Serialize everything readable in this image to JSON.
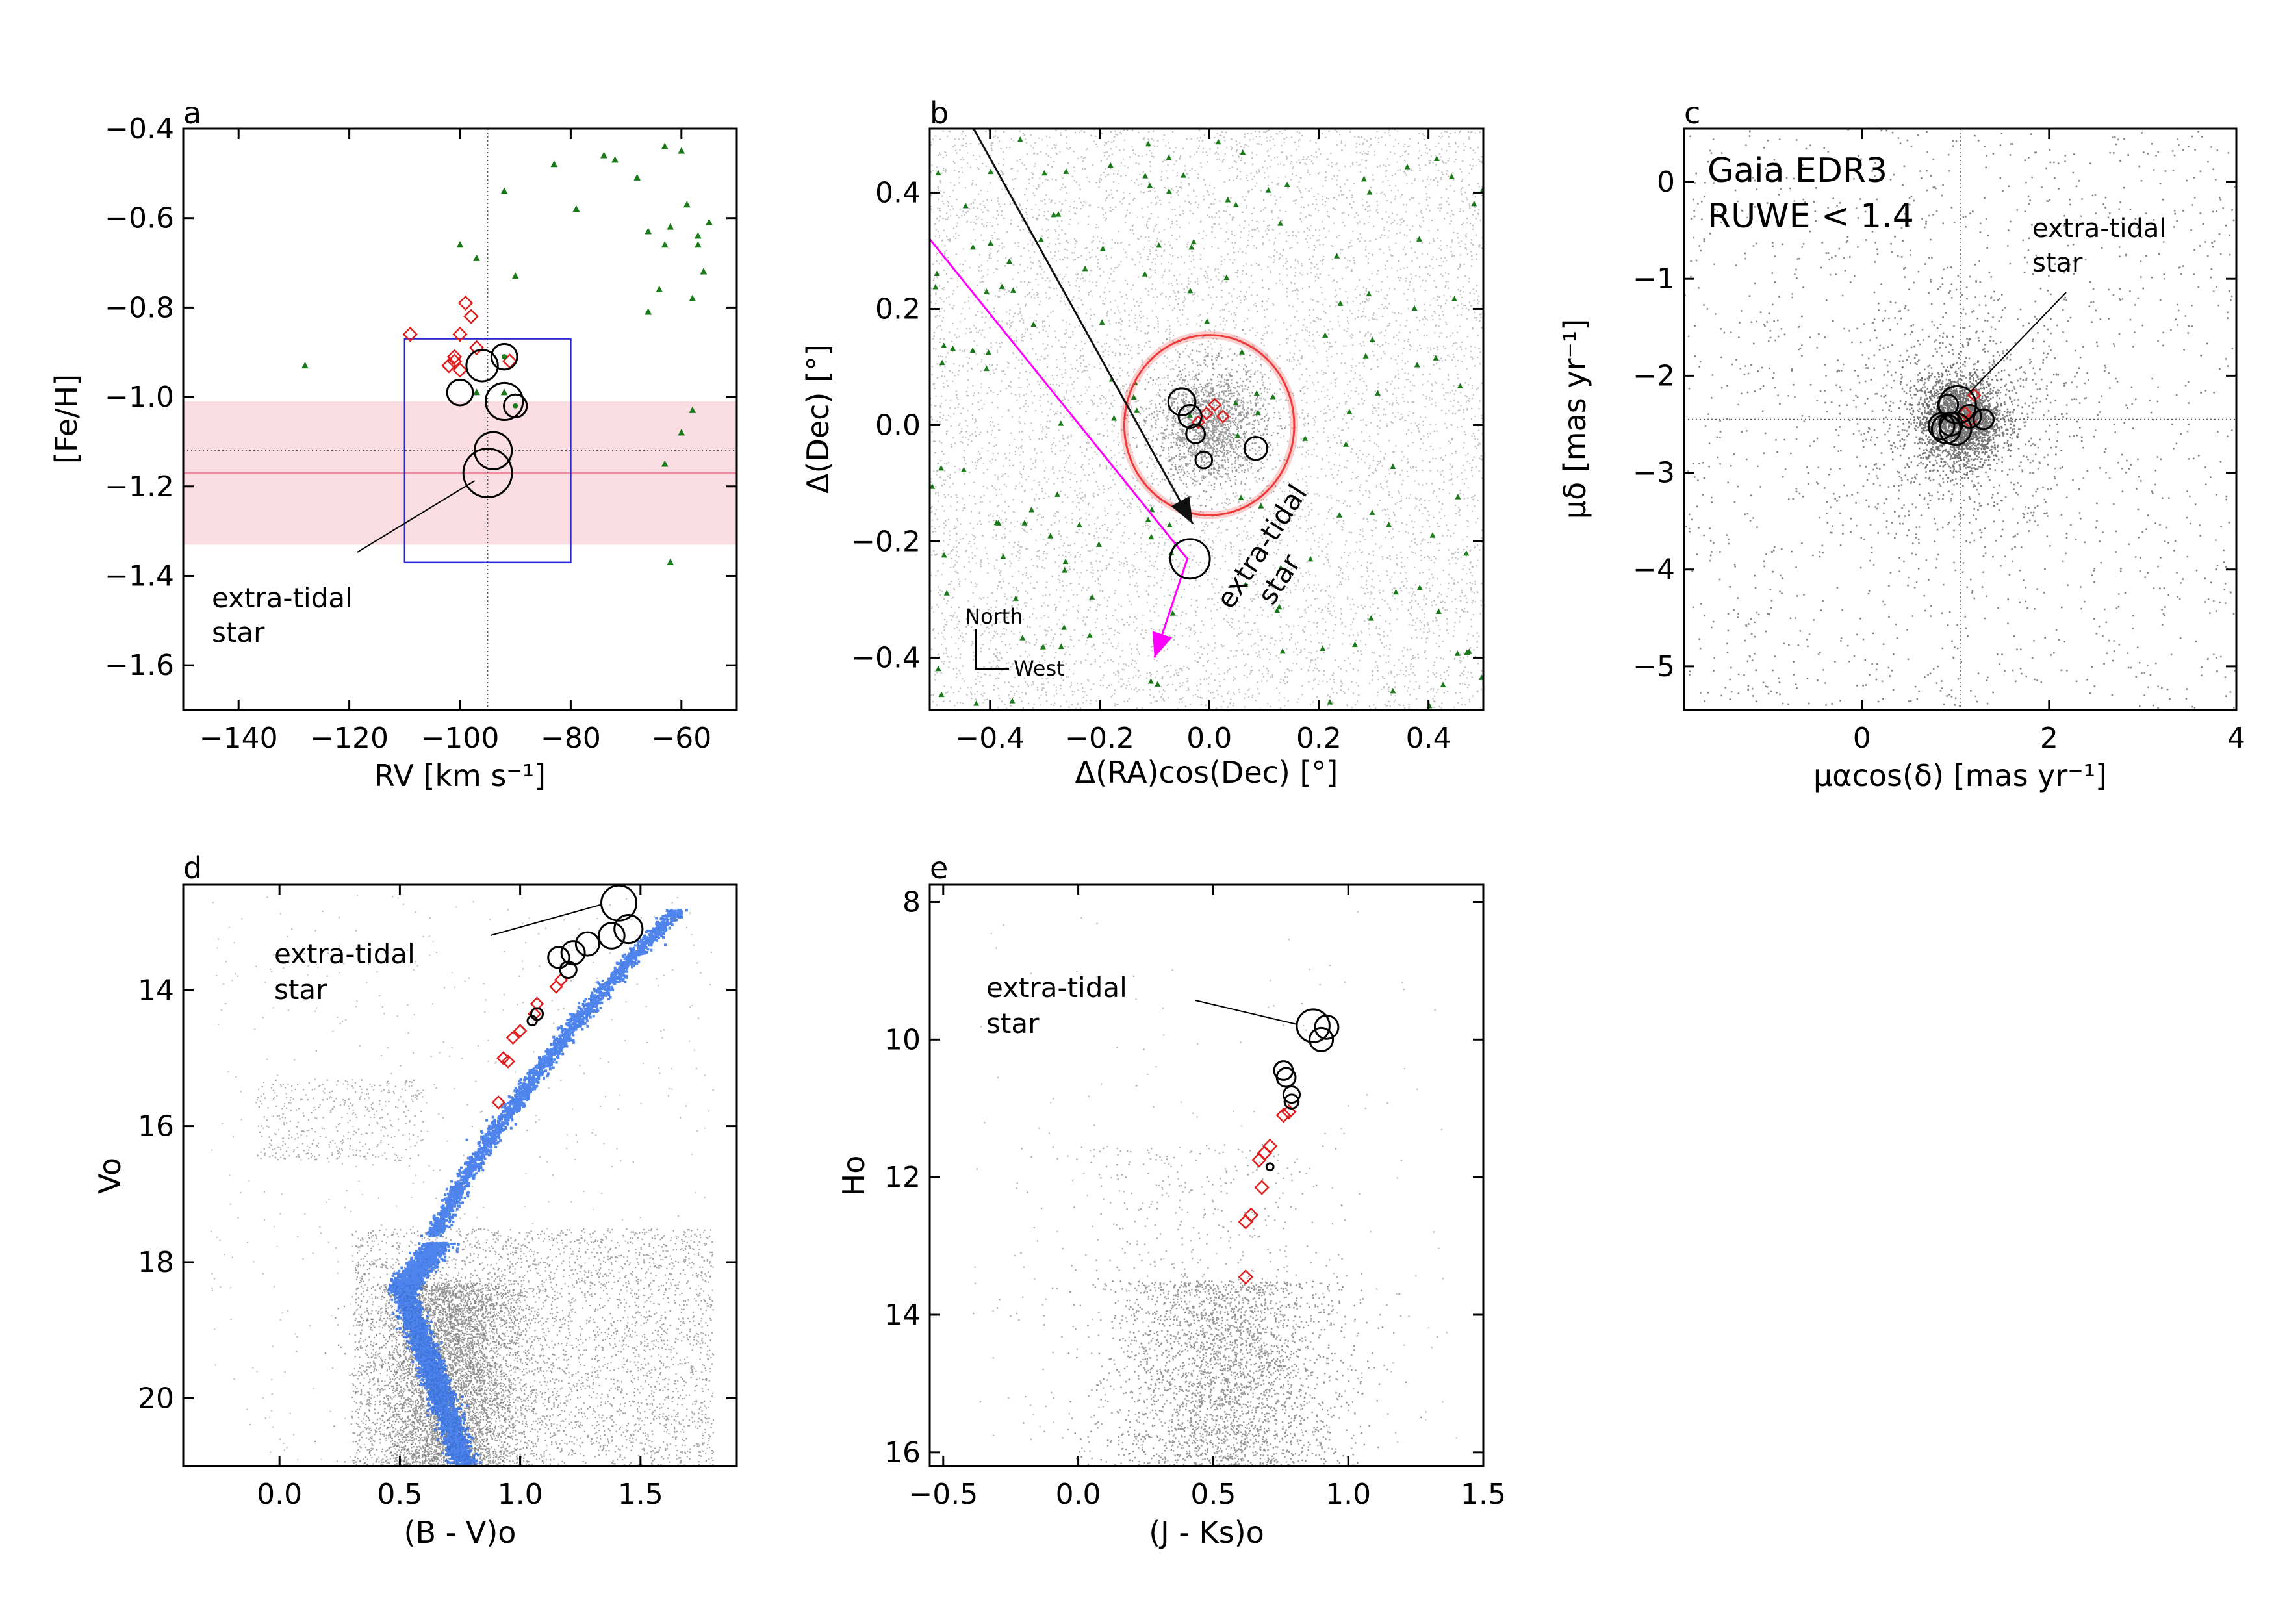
{
  "colors": {
    "axis": "#000000",
    "field": "#8c8c8c",
    "green": "#1a7a1a",
    "red": "#e02020",
    "blue": "#2f6fe8",
    "magenta": "#ff00ff",
    "pinkband": "#fbdde4",
    "pinkline": "#f48aa0",
    "box": "#2a2acc",
    "ring": "#ee3a3a"
  },
  "chart_data": [
    {
      "type": "scatter",
      "panel_label": "a",
      "xlabel": "RV [km s⁻¹]",
      "ylabel": "[Fe/H]",
      "xlim": [
        -150,
        -50
      ],
      "ylim": [
        -1.7,
        -0.4
      ],
      "xticks": [
        -140,
        -120,
        -100,
        -80,
        -60
      ],
      "xtick_labels": [
        "−140",
        "−120",
        "−100",
        "−80",
        "−60"
      ],
      "yticks": [
        -0.4,
        -0.6,
        -0.8,
        -1.0,
        -1.2,
        -1.4,
        -1.6
      ],
      "ytick_labels": [
        "−0.4",
        "−0.6",
        "−0.8",
        "−1.0",
        "−1.2",
        "−1.4",
        "−1.6"
      ],
      "band": [
        -1.33,
        -1.01
      ],
      "band_line": -1.17,
      "hline_dotted": -1.12,
      "vline_dotted": -95,
      "box": {
        "x": [
          -110,
          -80
        ],
        "y": [
          -1.37,
          -0.87
        ]
      },
      "field_stars": [
        [
          -128,
          -0.93
        ],
        [
          -97,
          -0.99
        ],
        [
          -92,
          -0.99
        ],
        [
          -63,
          -0.44
        ],
        [
          -60,
          -0.45
        ],
        [
          -72,
          -0.47
        ],
        [
          -74,
          -0.46
        ],
        [
          -55,
          -0.61
        ],
        [
          -56,
          -0.72
        ],
        [
          -64,
          -0.76
        ],
        [
          -57,
          -0.64
        ],
        [
          -63,
          -0.66
        ],
        [
          -66,
          -0.81
        ],
        [
          -83,
          -0.48
        ],
        [
          -68,
          -0.51
        ],
        [
          -92,
          -0.54
        ],
        [
          -62,
          -0.62
        ],
        [
          -59,
          -0.57
        ],
        [
          -66,
          -0.63
        ],
        [
          -79,
          -0.58
        ],
        [
          -100,
          -0.66
        ],
        [
          -97,
          -0.69
        ],
        [
          -90,
          -0.73
        ],
        [
          -60,
          -1.08
        ],
        [
          -58,
          -1.03
        ],
        [
          -62,
          -1.37
        ],
        [
          -63,
          -1.15
        ],
        [
          -57,
          -0.66
        ],
        [
          -58,
          -0.78
        ]
      ],
      "members_red": [
        [
          -109,
          -0.86
        ],
        [
          -99,
          -0.79
        ],
        [
          -98,
          -0.82
        ],
        [
          -100,
          -0.86
        ],
        [
          -97,
          -0.89
        ],
        [
          -101,
          -0.92
        ],
        [
          -102,
          -0.93
        ],
        [
          -100,
          -0.94
        ],
        [
          -101,
          -0.91
        ],
        [
          -91,
          -0.92
        ]
      ],
      "members_black": [
        [
          -100,
          -0.99,
          9
        ],
        [
          -96,
          -0.93,
          11
        ],
        [
          -92,
          -0.91,
          9
        ],
        [
          -92,
          -1.01,
          13
        ],
        [
          -90,
          -1.02,
          8
        ],
        [
          -94,
          -1.12,
          13
        ],
        [
          -95,
          -1.17,
          17
        ]
      ],
      "members_black_dots": [
        [
          -92,
          -0.91
        ],
        [
          -90,
          -1.02
        ]
      ],
      "annotation": {
        "line1": "extra-tidal",
        "line2": "star",
        "target": [
          -95,
          -1.17
        ]
      }
    },
    {
      "type": "scatter",
      "panel_label": "b",
      "xlabel": "Δ(RA)cos(Dec) [°]",
      "ylabel": "Δ(Dec) [°]",
      "xlim": [
        -0.51,
        0.5
      ],
      "ylim": [
        -0.49,
        0.51
      ],
      "xticks": [
        -0.4,
        -0.2,
        0.0,
        0.2,
        0.4
      ],
      "xtick_labels": [
        "−0.4",
        "−0.2",
        "0.0",
        "0.2",
        "0.4"
      ],
      "yticks": [
        0.4,
        0.2,
        0.0,
        -0.2,
        -0.4
      ],
      "ytick_labels": [
        "0.4",
        "0.2",
        "0.0",
        "−0.2",
        "−0.4"
      ],
      "tidal_radius_deg": 0.155,
      "black_arrow": [
        [
          -0.43,
          0.51
        ],
        [
          -0.03,
          -0.17
        ]
      ],
      "magenta_line": [
        [
          -0.51,
          0.32
        ],
        [
          -0.04,
          -0.23
        ]
      ],
      "magenta_arrow": [
        [
          -0.04,
          -0.23
        ],
        [
          -0.1,
          -0.4
        ]
      ],
      "members_black": [
        [
          -0.05,
          0.04,
          13
        ],
        [
          -0.035,
          0.015,
          11
        ],
        [
          -0.025,
          -0.015,
          9
        ],
        [
          0.085,
          -0.04,
          11
        ],
        [
          -0.01,
          -0.06,
          8
        ],
        [
          -0.035,
          -0.23,
          19
        ]
      ],
      "members_red": [
        [
          -0.005,
          0.02
        ],
        [
          0.025,
          0.015
        ],
        [
          0.01,
          0.035
        ],
        [
          -0.02,
          0.005
        ]
      ],
      "compass": {
        "north": "North",
        "west": "West"
      },
      "annotation": {
        "line1": "extra-tidal",
        "line2": "star"
      }
    },
    {
      "type": "scatter",
      "panel_label": "c",
      "xlabel": "μαcos(δ) [mas yr⁻¹]",
      "ylabel": "μδ [mas yr⁻¹]",
      "xlim": [
        -1.9,
        4.0
      ],
      "ylim": [
        -5.45,
        0.55
      ],
      "xticks": [
        0,
        2,
        4
      ],
      "xtick_labels": [
        "0",
        "2",
        "4"
      ],
      "yticks": [
        0,
        -1,
        -2,
        -3,
        -4,
        -5
      ],
      "ytick_labels": [
        "0",
        "−1",
        "−2",
        "−3",
        "−4",
        "−5"
      ],
      "center": [
        1.05,
        -2.45
      ],
      "inset_text": {
        "line1": "Gaia EDR3",
        "line2": "RUWE < 1.4"
      },
      "members_black": [
        [
          0.85,
          -2.52,
          9
        ],
        [
          0.9,
          -2.55,
          10
        ],
        [
          0.95,
          -2.5,
          8
        ],
        [
          0.92,
          -2.3,
          7
        ],
        [
          1.15,
          -2.42,
          8
        ],
        [
          1.3,
          -2.45,
          7
        ],
        [
          1.0,
          -2.55,
          11
        ],
        [
          1.02,
          -2.3,
          13
        ]
      ],
      "members_red": [
        [
          1.1,
          -2.38
        ],
        [
          1.2,
          -2.2
        ],
        [
          1.15,
          -2.47
        ]
      ],
      "annotation": {
        "line1": "extra-tidal",
        "line2": "star"
      }
    },
    {
      "type": "scatter",
      "panel_label": "d",
      "xlabel": "(B - V)o",
      "ylabel": "Vo",
      "xlim": [
        -0.4,
        1.9
      ],
      "ylim": [
        21.0,
        12.45
      ],
      "xticks": [
        0.0,
        0.5,
        1.0,
        1.5
      ],
      "xtick_labels": [
        "0.0",
        "0.5",
        "1.0",
        "1.5"
      ],
      "yticks": [
        14,
        16,
        18,
        20
      ],
      "ytick_labels": [
        "14",
        "16",
        "18",
        "20"
      ],
      "members_black": [
        [
          1.41,
          12.72,
          15
        ],
        [
          1.45,
          13.1,
          12
        ],
        [
          1.38,
          13.2,
          11
        ],
        [
          1.28,
          13.32,
          10
        ],
        [
          1.22,
          13.45,
          10
        ],
        [
          1.16,
          13.52,
          9
        ],
        [
          1.2,
          13.7,
          7
        ],
        [
          1.07,
          14.35,
          5
        ],
        [
          1.05,
          14.45,
          4
        ]
      ],
      "members_red": [
        [
          1.17,
          13.85
        ],
        [
          1.15,
          13.95
        ],
        [
          1.07,
          14.2
        ],
        [
          1.06,
          14.35
        ],
        [
          1.0,
          14.6
        ],
        [
          0.97,
          14.7
        ],
        [
          0.93,
          15.0
        ],
        [
          0.95,
          15.05
        ],
        [
          0.91,
          15.65
        ]
      ],
      "annotation": {
        "line1": "extra-tidal",
        "line2": "star"
      }
    },
    {
      "type": "scatter",
      "panel_label": "e",
      "xlabel": "(J - Ks)o",
      "ylabel": "Ho",
      "xlim": [
        -0.55,
        1.5
      ],
      "ylim": [
        16.2,
        7.75
      ],
      "xticks": [
        -0.5,
        0.0,
        0.5,
        1.0,
        1.5
      ],
      "xtick_labels": [
        "−0.5",
        "0.0",
        "0.5",
        "1.0",
        "1.5"
      ],
      "yticks": [
        8,
        10,
        12,
        14,
        16
      ],
      "ytick_labels": [
        "8",
        "10",
        "12",
        "14",
        "16"
      ],
      "members_black": [
        [
          0.87,
          9.8,
          14
        ],
        [
          0.92,
          9.82,
          10
        ],
        [
          0.9,
          10.0,
          10
        ],
        [
          0.76,
          10.45,
          8
        ],
        [
          0.77,
          10.55,
          8
        ],
        [
          0.79,
          10.8,
          7
        ],
        [
          0.79,
          10.9,
          6
        ],
        [
          0.71,
          11.85,
          3
        ]
      ],
      "members_red": [
        [
          0.78,
          11.05
        ],
        [
          0.76,
          11.1
        ],
        [
          0.71,
          11.55
        ],
        [
          0.69,
          11.65
        ],
        [
          0.67,
          11.75
        ],
        [
          0.68,
          12.15
        ],
        [
          0.64,
          12.55
        ],
        [
          0.62,
          12.65
        ],
        [
          0.62,
          13.45
        ]
      ],
      "annotation": {
        "line1": "extra-tidal",
        "line2": "star"
      }
    }
  ]
}
